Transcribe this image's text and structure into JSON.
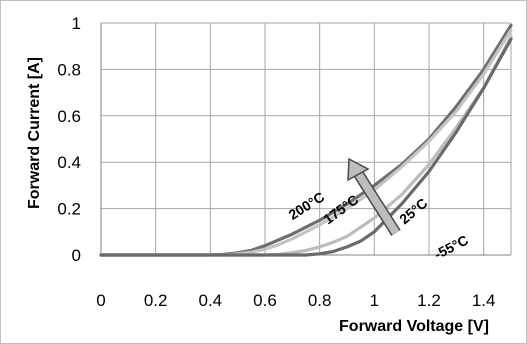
{
  "chart_data": {
    "type": "line",
    "title": "",
    "xlabel": "Forward Voltage [V]",
    "ylabel": "Forward Current [A]",
    "xlim": [
      0,
      1.5
    ],
    "ylim": [
      0,
      1
    ],
    "x_ticks": [
      "0",
      "0.2",
      "0.4",
      "0.6",
      "0.8",
      "1",
      "1.2",
      "1.4"
    ],
    "y_ticks": [
      "0",
      "0.2",
      "0.4",
      "0.6",
      "0.8",
      "1"
    ],
    "grid": true,
    "legend": "none",
    "series": [
      {
        "name": "200°C",
        "color": "#6e6e6e",
        "x": [
          0,
          0.4,
          0.45,
          0.5,
          0.55,
          0.6,
          0.65,
          0.7,
          0.8,
          0.9,
          1.0,
          1.1,
          1.2,
          1.3,
          1.4,
          1.5
        ],
        "y": [
          0,
          0,
          0.003,
          0.01,
          0.02,
          0.04,
          0.065,
          0.09,
          0.15,
          0.22,
          0.3,
          0.39,
          0.5,
          0.64,
          0.8,
          0.99
        ]
      },
      {
        "name": "175°C",
        "color": "#c4c4c4",
        "x": [
          0,
          0.45,
          0.5,
          0.55,
          0.6,
          0.65,
          0.7,
          0.8,
          0.9,
          1.0,
          1.1,
          1.2,
          1.3,
          1.4,
          1.5
        ],
        "y": [
          0,
          0,
          0.005,
          0.012,
          0.025,
          0.045,
          0.07,
          0.13,
          0.2,
          0.28,
          0.38,
          0.49,
          0.62,
          0.78,
          0.97
        ]
      },
      {
        "name": "25°C",
        "color": "#bcbcbc",
        "x": [
          0,
          0.6,
          0.65,
          0.7,
          0.75,
          0.8,
          0.85,
          0.9,
          1.0,
          1.1,
          1.2,
          1.3,
          1.4,
          1.5
        ],
        "y": [
          0,
          0,
          0.003,
          0.01,
          0.02,
          0.035,
          0.055,
          0.08,
          0.16,
          0.26,
          0.39,
          0.55,
          0.72,
          0.94
        ]
      },
      {
        "name": "-55°C",
        "color": "#6a6a6a",
        "x": [
          0,
          0.75,
          0.8,
          0.85,
          0.9,
          0.95,
          1.0,
          1.05,
          1.1,
          1.2,
          1.3,
          1.4,
          1.5
        ],
        "y": [
          0,
          0,
          0.005,
          0.015,
          0.035,
          0.06,
          0.1,
          0.16,
          0.22,
          0.36,
          0.53,
          0.72,
          0.93
        ]
      }
    ],
    "annotations": [
      {
        "text": "200°C",
        "x": 0.92,
        "y": 0.15,
        "rotate": -32
      },
      {
        "text": "175°C",
        "x": 1.05,
        "y": 0.13,
        "rotate": -36
      },
      {
        "text": "25°C",
        "x": 1.33,
        "y": 0.13,
        "rotate": -40
      },
      {
        "text": "-55°C",
        "x": 1.45,
        "y": -0.02,
        "rotate": -27
      }
    ]
  }
}
